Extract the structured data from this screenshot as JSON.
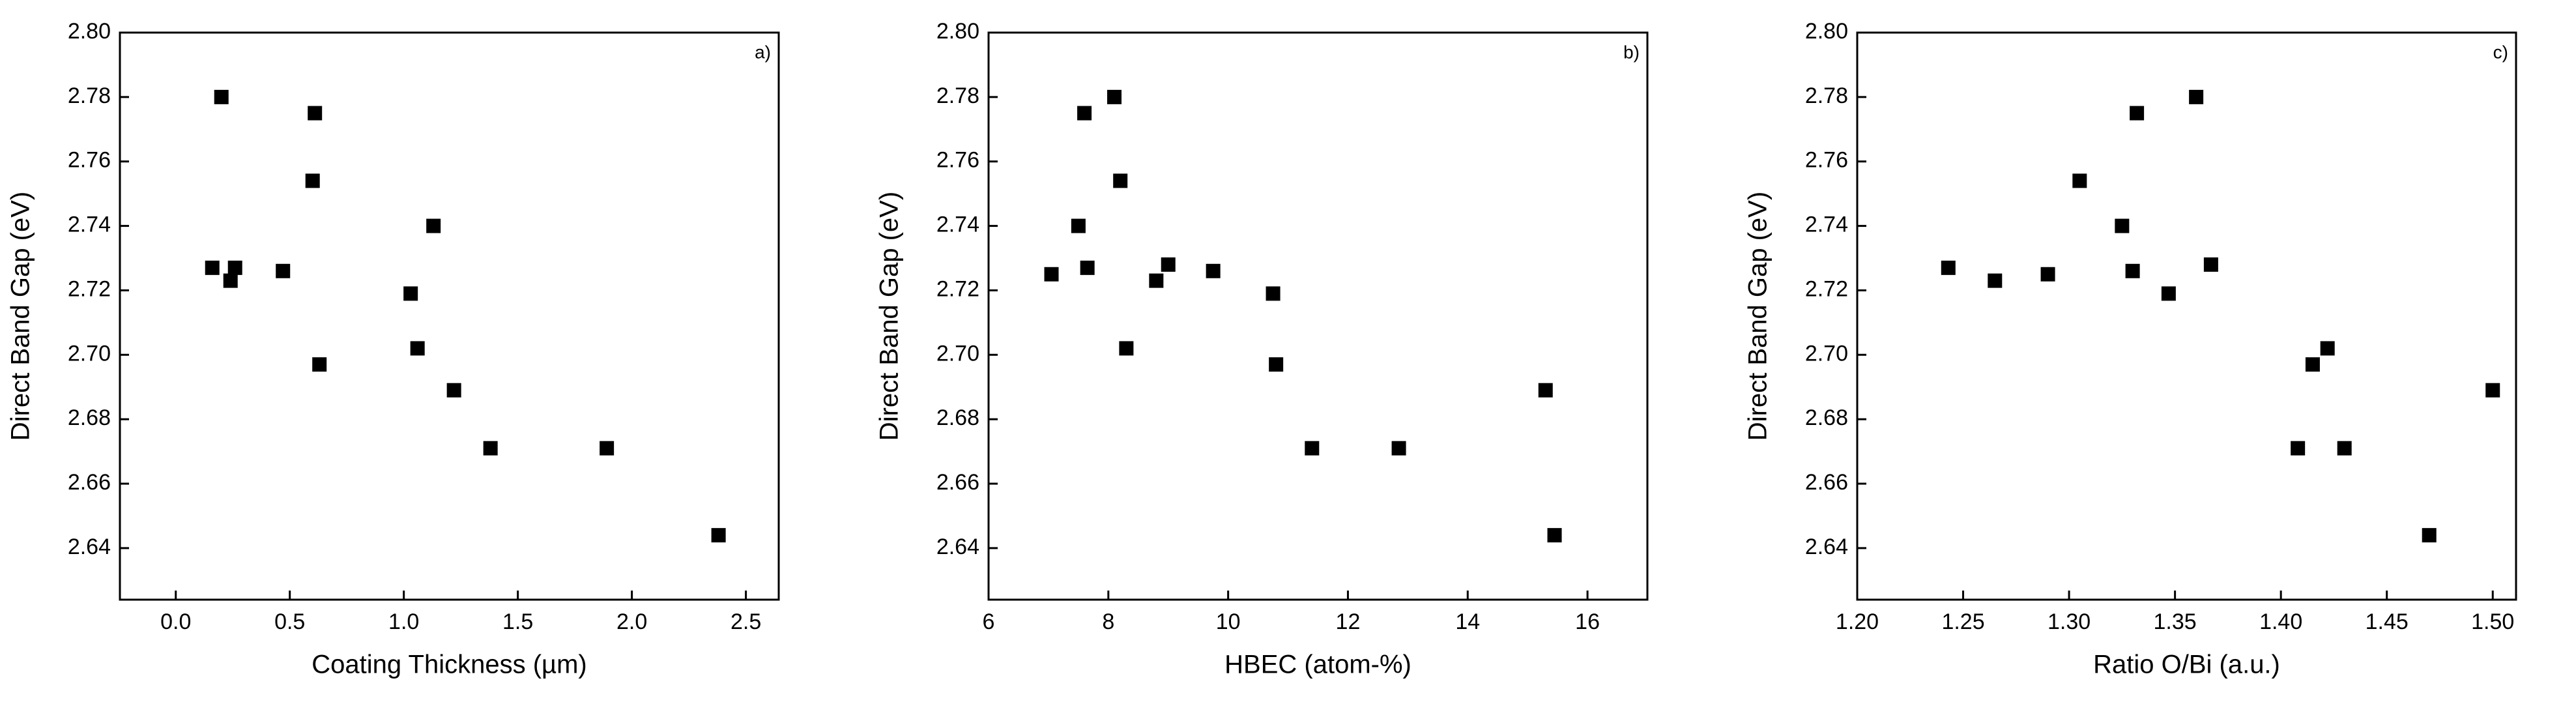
{
  "chart_data": [
    {
      "type": "scatter",
      "annotation": "a)",
      "x_label": "Coating Thickness (µm)",
      "y_label": "Direct Band Gap (eV)",
      "color": "#000000",
      "x": [
        0.16,
        0.2,
        0.24,
        0.26,
        0.47,
        0.6,
        0.61,
        0.63,
        1.03,
        1.06,
        1.13,
        1.22,
        1.38,
        1.89,
        2.38
      ],
      "values": [
        2.727,
        2.78,
        2.723,
        2.727,
        2.726,
        2.754,
        2.775,
        2.697,
        2.719,
        2.702,
        2.74,
        2.689,
        2.671,
        2.671,
        2.644
      ],
      "xlim": [
        -0.245,
        2.644
      ],
      "xticks": [
        {
          "value": 0,
          "label": "0.0"
        },
        0.5,
        {
          "value": 1,
          "label": "1.0"
        },
        1.5,
        {
          "value": 2,
          "label": "2.0"
        },
        2.5
      ],
      "ylim": [
        2.624,
        2.8
      ],
      "yticks": [
        2.64,
        2.66,
        2.68,
        {
          "value": 2.7,
          "label": "2.70"
        },
        2.72,
        2.74,
        2.76,
        2.78,
        {
          "value": 2.8,
          "label": "2.80"
        }
      ]
    },
    {
      "type": "scatter",
      "annotation": "b)",
      "x_label": "HBEC (atom-%)",
      "y_label": "Direct Band Gap (eV)",
      "color": "#000000",
      "x": [
        7.05,
        7.5,
        7.6,
        7.65,
        8.1,
        8.2,
        8.3,
        8.8,
        9.0,
        9.75,
        10.75,
        10.8,
        11.4,
        12.85,
        15.3,
        15.45
      ],
      "values": [
        2.725,
        2.74,
        2.775,
        2.727,
        2.78,
        2.754,
        2.702,
        2.723,
        2.728,
        2.726,
        2.719,
        2.697,
        2.671,
        2.671,
        2.689,
        2.644
      ],
      "xlim": [
        6,
        17
      ],
      "xticks": [
        6,
        8,
        10,
        12,
        14,
        16
      ],
      "ylim": [
        2.624,
        2.8
      ],
      "yticks": [
        2.64,
        2.66,
        2.68,
        {
          "value": 2.7,
          "label": "2.70"
        },
        2.72,
        2.74,
        2.76,
        2.78,
        {
          "value": 2.8,
          "label": "2.80"
        }
      ]
    },
    {
      "type": "scatter",
      "annotation": "c)",
      "x_label": "Ratio O/Bi (a.u.)",
      "y_label": "Direct Band Gap (eV)",
      "color": "#000000",
      "x": [
        1.243,
        1.265,
        1.29,
        1.305,
        1.325,
        1.33,
        1.332,
        1.347,
        1.36,
        1.367,
        1.408,
        1.415,
        1.422,
        1.43,
        1.47,
        1.5
      ],
      "values": [
        2.727,
        2.723,
        2.725,
        2.754,
        2.74,
        2.726,
        2.775,
        2.719,
        2.78,
        2.728,
        2.671,
        2.697,
        2.702,
        2.671,
        2.644,
        2.689
      ],
      "xlim": [
        1.2,
        1.511
      ],
      "xticks": [
        {
          "value": 1.2,
          "label": "1.20"
        },
        1.25,
        {
          "value": 1.3,
          "label": "1.30"
        },
        1.35,
        {
          "value": 1.4,
          "label": "1.40"
        },
        1.45,
        {
          "value": 1.5,
          "label": "1.50"
        }
      ],
      "ylim": [
        2.624,
        2.8
      ],
      "yticks": [
        2.64,
        2.66,
        2.68,
        {
          "value": 2.7,
          "label": "2.70"
        },
        2.72,
        2.74,
        2.76,
        2.78,
        {
          "value": 2.8,
          "label": "2.80"
        }
      ]
    }
  ]
}
